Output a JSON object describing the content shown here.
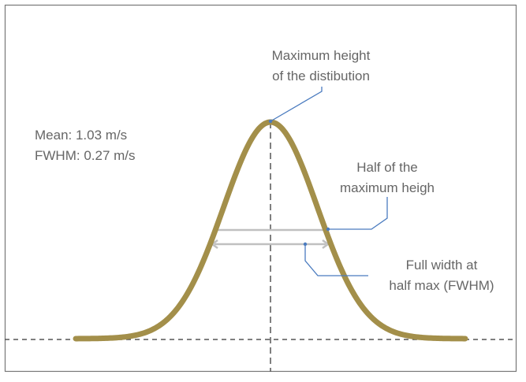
{
  "annotations": {
    "max_height": [
      "Maximum height",
      "of the distibution"
    ],
    "half_max": [
      "Half of the",
      "maximum heigh"
    ],
    "fwhm": [
      "Full width at",
      "half max (FWHM)"
    ]
  },
  "stats": {
    "mean": "Mean: 1.03 m/s",
    "fwhm": "FWHM: 0.27 m/s"
  },
  "colors": {
    "curve": "#a38f4a",
    "leader": "#4a7bbf",
    "guide": "#c0c0c0",
    "text": "#666666"
  }
}
